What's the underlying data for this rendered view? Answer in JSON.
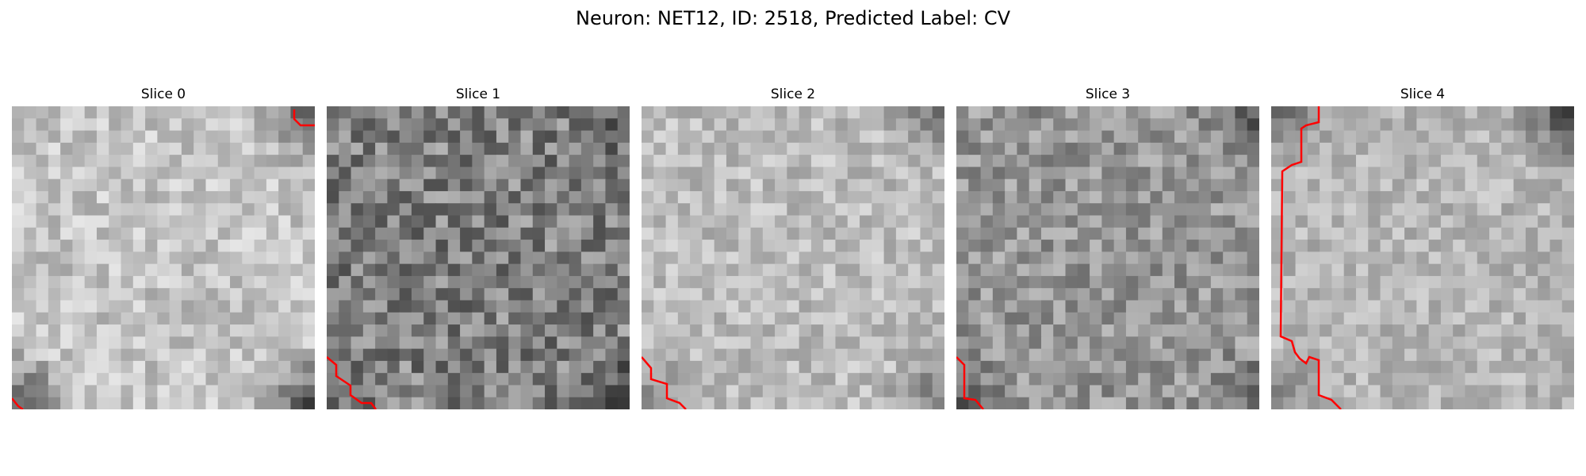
{
  "figure": {
    "title": "Neuron: NET12, ID: 2518, Predicted Label: CV"
  },
  "panels": [
    {
      "title": "Slice 0",
      "base": 196,
      "vignette": {
        "tr": 90,
        "bl": 100,
        "br": 110
      },
      "spread": 34,
      "seed": 11
    },
    {
      "title": "Slice 1",
      "base": 128,
      "vignette": {
        "tr": 40,
        "bl": 30,
        "br": 60
      },
      "spread": 52,
      "seed": 23
    },
    {
      "title": "Slice 2",
      "base": 188,
      "vignette": {
        "tr": 80,
        "bl": 60,
        "br": 70
      },
      "spread": 32,
      "seed": 37
    },
    {
      "title": "Slice 3",
      "base": 150,
      "vignette": {
        "tr": 60,
        "bl": 50,
        "br": 50
      },
      "spread": 40,
      "seed": 41
    },
    {
      "title": "Slice 4",
      "base": 182,
      "vignette": {
        "tr": 110,
        "tl": 70,
        "bl": 50
      },
      "spread": 30,
      "seed": 53
    }
  ],
  "contour_color": "#ff0000"
}
